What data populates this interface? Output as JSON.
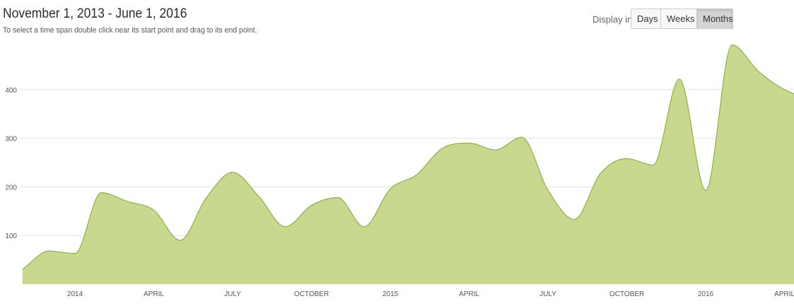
{
  "header": {
    "title": "November 1, 2013 - June 1, 2016",
    "hint": "To select a time span double click near its start point and drag to its end point."
  },
  "display_toggle": {
    "label": "Display in",
    "options": [
      "Days",
      "Weeks",
      "Months"
    ],
    "selected": "Months"
  },
  "colors": {
    "area_fill": "#c8d88f",
    "area_line": "#8db33a",
    "grid": "#e3e3e3"
  },
  "chart_data": {
    "type": "area",
    "title": "November 1, 2013 - June 1, 2016",
    "x": [
      "2013-11",
      "2013-12",
      "2014-01",
      "2014-02",
      "2014-03",
      "2014-04",
      "2014-05",
      "2014-06",
      "2014-07",
      "2014-08",
      "2014-09",
      "2014-10",
      "2014-11",
      "2014-12",
      "2015-01",
      "2015-02",
      "2015-03",
      "2015-04",
      "2015-05",
      "2015-06",
      "2015-07",
      "2015-08",
      "2015-09",
      "2015-10",
      "2015-11",
      "2015-12",
      "2016-01",
      "2016-02",
      "2016-03",
      "2016-04",
      "2016-05"
    ],
    "values": [
      30,
      68,
      63,
      188,
      170,
      152,
      90,
      178,
      230,
      180,
      118,
      162,
      178,
      118,
      196,
      225,
      280,
      290,
      276,
      302,
      193,
      133,
      228,
      258,
      245,
      422,
      193,
      492,
      438,
      400,
      380
    ],
    "ylim": [
      0,
      500
    ],
    "yticks": [
      100,
      200,
      300,
      400
    ],
    "x_tick_labels": [
      {
        "x": "2014-01",
        "label": "2014"
      },
      {
        "x": "2014-04",
        "label": "APRIL"
      },
      {
        "x": "2014-07",
        "label": "JULY"
      },
      {
        "x": "2014-10",
        "label": "OCTOBER"
      },
      {
        "x": "2015-01",
        "label": "2015"
      },
      {
        "x": "2015-04",
        "label": "APRIL"
      },
      {
        "x": "2015-07",
        "label": "JULY"
      },
      {
        "x": "2015-10",
        "label": "OCTOBER"
      },
      {
        "x": "2016-01",
        "label": "2016"
      },
      {
        "x": "2016-04",
        "label": "APRIL"
      }
    ],
    "grid": true,
    "legend": "none",
    "xlabel": "",
    "ylabel": ""
  }
}
